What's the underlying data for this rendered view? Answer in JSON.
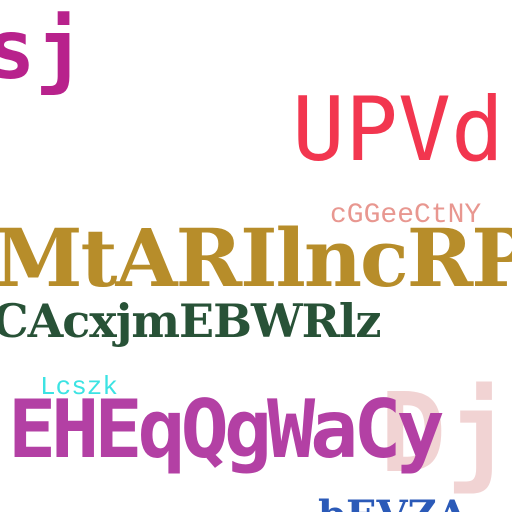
{
  "words": [
    {
      "id": "sj",
      "text": "sj",
      "color": "#b8228c"
    },
    {
      "id": "upvd",
      "text": "UPVd",
      "color": "#f2364f"
    },
    {
      "id": "cggee",
      "text": "cGGeeCtNY",
      "color": "#e89790"
    },
    {
      "id": "mtar",
      "text": "MtARIlncRP",
      "color": "#b78d2a"
    },
    {
      "id": "cacx",
      "text": "CAcxjmEBWRlz",
      "color": "#285237"
    },
    {
      "id": "lcszk",
      "text": "Lcszk",
      "color": "#3ce3e3"
    },
    {
      "id": "eheq",
      "text": "EHEqQgWaCy",
      "color": "#b340a4"
    },
    {
      "id": "dj",
      "text": "Dj",
      "color": "#e7b0b0"
    },
    {
      "id": "bottom",
      "text": "bEVZA",
      "color": "#2b5ab8"
    }
  ]
}
